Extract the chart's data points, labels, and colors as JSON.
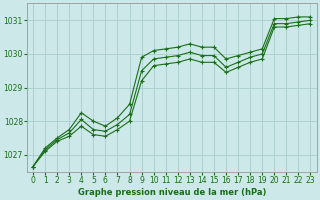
{
  "title": "Graphe pression niveau de la mer (hPa)",
  "bg_color": "#cce8e8",
  "grid_color": "#aacccc",
  "line_color": "#1a6e1a",
  "xlim": [
    -0.5,
    23.5
  ],
  "ylim": [
    1026.5,
    1031.5
  ],
  "yticks": [
    1027,
    1028,
    1029,
    1030,
    1031
  ],
  "xticks": [
    0,
    1,
    2,
    3,
    4,
    5,
    6,
    7,
    8,
    9,
    10,
    11,
    12,
    13,
    14,
    15,
    16,
    17,
    18,
    19,
    20,
    21,
    22,
    23
  ],
  "series": [
    [
      1026.65,
      1027.2,
      1027.5,
      1027.75,
      1028.25,
      1028.0,
      1027.85,
      1028.1,
      1028.5,
      1029.9,
      1030.1,
      1030.15,
      1030.2,
      1030.3,
      1030.2,
      1030.2,
      1029.85,
      1029.95,
      1030.05,
      1030.15,
      1031.05,
      1031.05,
      1031.1,
      1031.1
    ],
    [
      1026.65,
      1027.15,
      1027.45,
      1027.65,
      1028.05,
      1027.75,
      1027.7,
      1027.9,
      1028.2,
      1029.5,
      1029.85,
      1029.9,
      1029.95,
      1030.05,
      1029.95,
      1029.95,
      1029.6,
      1029.75,
      1029.9,
      1030.0,
      1030.9,
      1030.9,
      1030.95,
      1031.0
    ],
    [
      1026.65,
      1027.1,
      1027.4,
      1027.55,
      1027.85,
      1027.6,
      1027.55,
      1027.75,
      1028.0,
      1029.2,
      1029.65,
      1029.7,
      1029.75,
      1029.85,
      1029.75,
      1029.75,
      1029.45,
      1029.6,
      1029.75,
      1029.85,
      1030.8,
      1030.8,
      1030.85,
      1030.9
    ]
  ],
  "marker": "+",
  "markersize": 3,
  "linewidth": 0.8,
  "tick_fontsize": 5.5,
  "xlabel_fontsize": 6.0
}
